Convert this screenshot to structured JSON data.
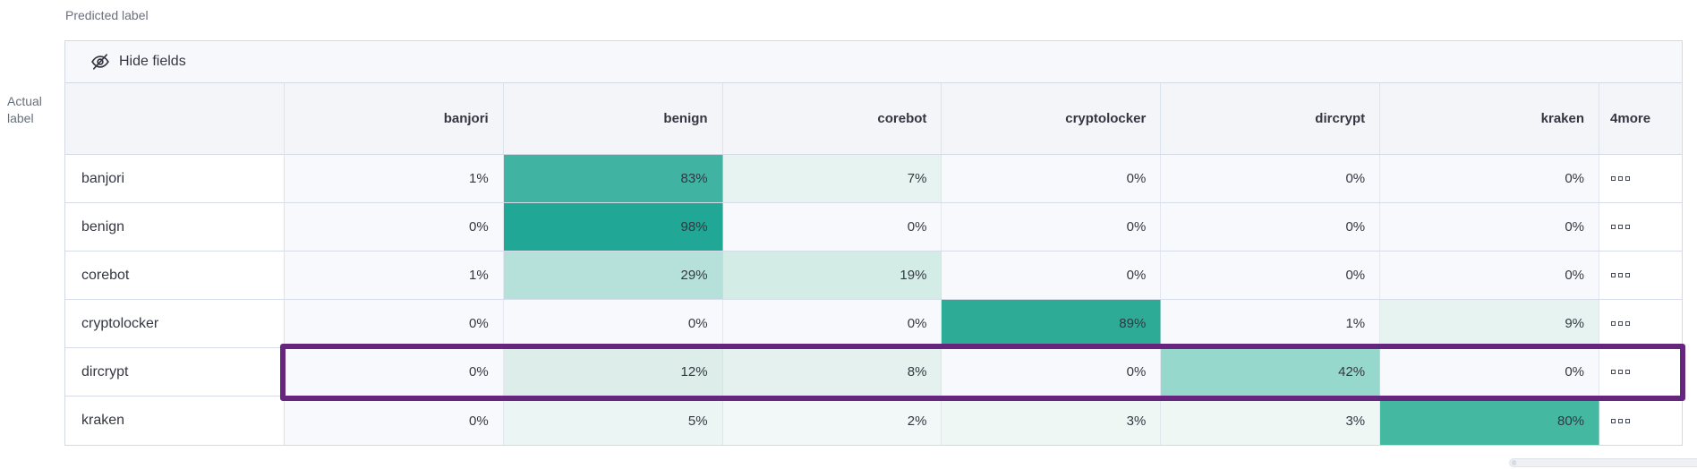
{
  "labels": {
    "predicted": "Predicted label",
    "actual": "Actual label"
  },
  "toolbar": {
    "hide_fields_label": "Hide fields",
    "icon": "eye-closed-icon"
  },
  "header": {
    "more_line1": "4",
    "more_line2": "more"
  },
  "icons": {
    "hide_fields": "eye-closed-icon",
    "row_overflow": "ellipsis-boxes-icon"
  },
  "colors": {
    "accent_teal": "#20a795",
    "highlight_border": "#66267e",
    "toolbar_bg": "#f7f8fb",
    "header_bg": "#f3f5f9",
    "grid_border": "#d3dae6",
    "empty_cell_bg": "#f7f9fc",
    "text": "#343741",
    "muted_text": "#69707d"
  },
  "chart_data": {
    "type": "heatmap",
    "xlabel": "Predicted label",
    "ylabel": "Actual label",
    "unit": "%",
    "x_categories": [
      "banjori",
      "benign",
      "corebot",
      "cryptolocker",
      "dircrypt",
      "kraken"
    ],
    "hidden_columns_note": "4 more",
    "highlighted_row": "dircrypt",
    "rows": [
      {
        "label": "banjori",
        "values": [
          1,
          83,
          7,
          0,
          0,
          0
        ]
      },
      {
        "label": "benign",
        "values": [
          0,
          98,
          0,
          0,
          0,
          0
        ]
      },
      {
        "label": "corebot",
        "values": [
          1,
          29,
          19,
          0,
          0,
          0
        ]
      },
      {
        "label": "cryptolocker",
        "values": [
          0,
          0,
          0,
          89,
          1,
          9
        ]
      },
      {
        "label": "dircrypt",
        "values": [
          0,
          12,
          8,
          0,
          42,
          0
        ]
      },
      {
        "label": "kraken",
        "values": [
          0,
          5,
          2,
          3,
          3,
          80
        ]
      }
    ],
    "cell_colors": [
      [
        "#f7f9fc",
        "#40b3a3",
        "#e7f3f0",
        "#f7f9fc",
        "#f7f9fc",
        "#f7f9fc"
      ],
      [
        "#f7f9fc",
        "#20a795",
        "#f7f9fc",
        "#f7f9fc",
        "#f7f9fc",
        "#f7f9fc"
      ],
      [
        "#f7f9fc",
        "#b5e1da",
        "#d3ece6",
        "#f7f9fc",
        "#f7f9fc",
        "#f7f9fc"
      ],
      [
        "#f7f9fc",
        "#f7f9fc",
        "#f7f9fc",
        "#2dab96",
        "#f7f9fc",
        "#e6f3f1"
      ],
      [
        "#f7f9fc",
        "#dcedea",
        "#e4f1ee",
        "#f7f9fc",
        "#97d8cd",
        "#f7f9fc"
      ],
      [
        "#f7f9fc",
        "#ebf5f3",
        "#f1f8f7",
        "#eff7f5",
        "#eff7f5",
        "#45b8a1"
      ]
    ]
  }
}
